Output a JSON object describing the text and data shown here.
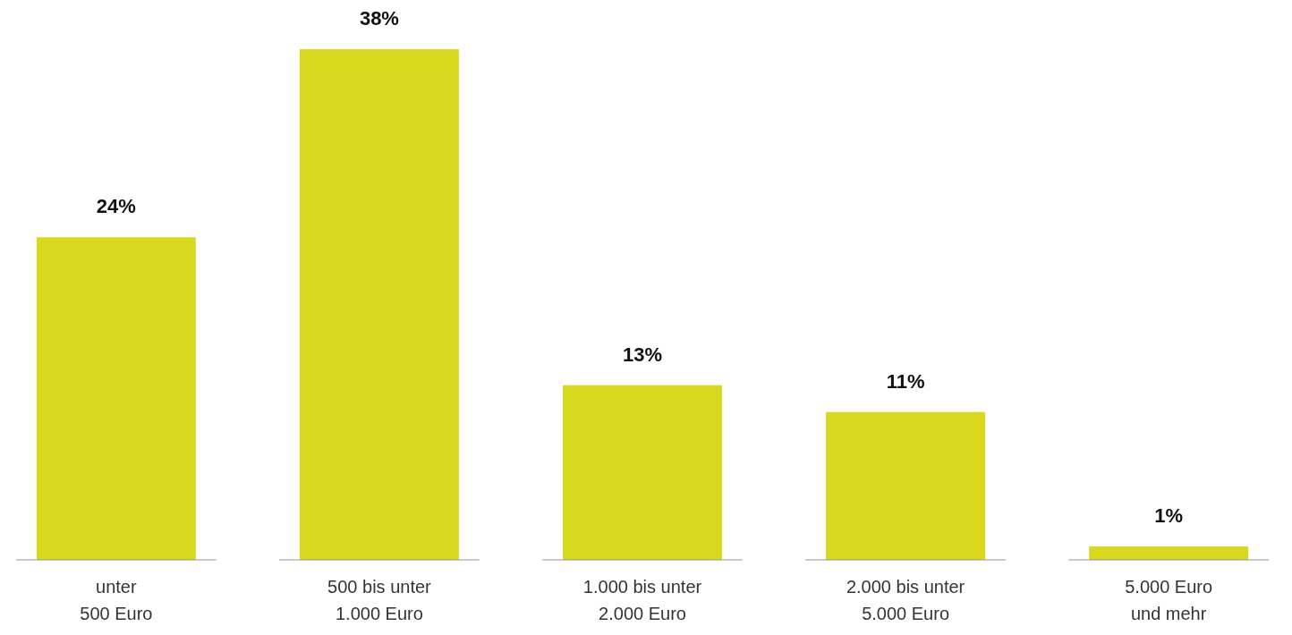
{
  "chart_data": {
    "type": "bar",
    "categories": [
      "unter\n500 Euro",
      "500 bis unter\n1.000 Euro",
      "1.000 bis unter\n2.000 Euro",
      "2.000 bis unter\n5.000 Euro",
      "5.000 Euro\nund mehr"
    ],
    "values": [
      24,
      38,
      13,
      11,
      1
    ],
    "value_labels": [
      "24%",
      "38%",
      "13%",
      "11%",
      "1%"
    ],
    "color": "#d8d81e",
    "tick_labels": "x"
  }
}
